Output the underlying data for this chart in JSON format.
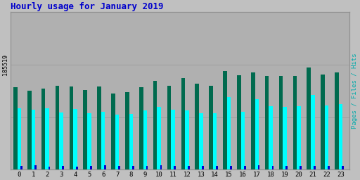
{
  "title": "Hourly usage for January 2019",
  "ylabel_right": "Pages / Files / Hits",
  "hours": [
    0,
    1,
    2,
    3,
    4,
    5,
    6,
    7,
    8,
    9,
    10,
    11,
    12,
    13,
    14,
    15,
    16,
    17,
    18,
    19,
    20,
    21,
    22,
    23
  ],
  "hits": [
    105000,
    100000,
    103000,
    107000,
    106000,
    101000,
    106000,
    97000,
    99000,
    105000,
    113000,
    107000,
    116000,
    109000,
    107000,
    125000,
    120000,
    124000,
    119000,
    119000,
    119000,
    130000,
    121000,
    124000
  ],
  "files": [
    78000,
    76000,
    78000,
    73000,
    77000,
    72000,
    74000,
    70000,
    71000,
    75000,
    80000,
    76000,
    75000,
    72000,
    72000,
    92000,
    74000,
    90000,
    81000,
    80000,
    81000,
    95000,
    82000,
    83000
  ],
  "pages": [
    5000,
    5500,
    4000,
    4500,
    4000,
    4500,
    5500,
    4500,
    4500,
    5000,
    5500,
    5000,
    5000,
    4500,
    4500,
    5000,
    5000,
    5500,
    5000,
    5000,
    5000,
    4500,
    5000,
    5000
  ],
  "hits_color": "#006a4e",
  "files_color": "#00ffff",
  "pages_color": "#0000cc",
  "bg_color": "#c0c0c0",
  "plot_bg_color": "#b0b0b0",
  "title_color": "#0000cc",
  "ylabel_color": "#00aaaa",
  "grid_color": "#a0a0a0",
  "ytick_label": "185519",
  "bar_width": 0.28,
  "ylim_max": 185519,
  "figwidth": 5.12,
  "figheight": 2.56,
  "dpi": 100
}
